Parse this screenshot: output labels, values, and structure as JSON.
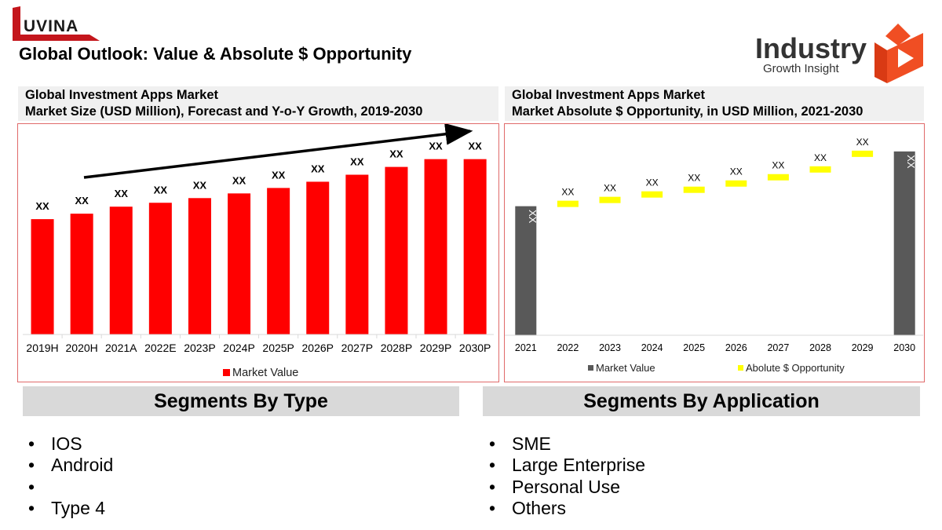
{
  "header": {
    "brand_left": "UVINA",
    "brand_left_initial": "L",
    "page_title": "Global Outlook: Value & Absolute $ Opportunity",
    "brand_right_main": "Industry",
    "brand_right_sub": "Growth Insight"
  },
  "colors": {
    "bar_red": "#ff0000",
    "bar_grey": "#595959",
    "opportunity_yellow": "#ffff00",
    "panel_border": "#e06a6a",
    "header_bg": "#f0f0f0",
    "segment_header_bg": "#d9d9d9",
    "logo_red": "#c4161c",
    "igi_orange": "#f04e23"
  },
  "left_panel": {
    "title_line1": "Global Investment Apps Market",
    "title_line2": "Market Size (USD Million), Forecast and Y-o-Y Growth, 2019-2030"
  },
  "right_panel": {
    "title_line1": "Global Investment Apps Market",
    "title_line2": "Market Absolute $ Opportunity, in USD Million, 2021-2030"
  },
  "chart_data": [
    {
      "type": "bar",
      "title": "Market Size (USD Million), Forecast and Y-o-Y Growth, 2019-2030",
      "xlabel": "",
      "ylabel": "",
      "categories": [
        "2019H",
        "2020H",
        "2021A",
        "2022E",
        "2023P",
        "2024P",
        "2025P",
        "2026P",
        "2027P",
        "2028P",
        "2029P",
        "2030P"
      ],
      "series": [
        {
          "name": "Market Value",
          "color": "#ff0000",
          "values": [
            148,
            155,
            164,
            169,
            175,
            181,
            188,
            196,
            205,
            215,
            225,
            225
          ],
          "data_labels": [
            "XX",
            "XX",
            "XX",
            "XX",
            "XX",
            "XX",
            "XX",
            "XX",
            "XX",
            "XX",
            "XX",
            "XX"
          ]
        }
      ],
      "ylim": [
        0,
        270
      ],
      "grid": false,
      "legend": "bottom",
      "annotations": [
        "growth-trend-arrow"
      ]
    },
    {
      "type": "bar",
      "subtype": "waterfall",
      "title": "Market Absolute $ Opportunity, in USD Million, 2021-2030",
      "xlabel": "",
      "ylabel": "",
      "categories": [
        "2021",
        "2022",
        "2023",
        "2024",
        "2025",
        "2026",
        "2027",
        "2028",
        "2029",
        "2030"
      ],
      "series": [
        {
          "name": "Market Value",
          "color": "#595959",
          "values": [
            165,
            null,
            null,
            null,
            null,
            null,
            null,
            null,
            null,
            235
          ],
          "data_labels": [
            "XX",
            "",
            "",
            "",
            "",
            "",
            "",
            "",
            "",
            "XX"
          ]
        },
        {
          "name": "Abolute $ Opportunity",
          "color": "#ffff00",
          "values": [
            null,
            168,
            173,
            180,
            186,
            194,
            202,
            212,
            232,
            null
          ],
          "data_labels": [
            "",
            "XX",
            "XX",
            "XX",
            "XX",
            "XX",
            "XX",
            "XX",
            "XX",
            ""
          ]
        }
      ],
      "ylim": [
        0,
        270
      ],
      "grid": false,
      "legend": "bottom"
    }
  ],
  "segments": {
    "by_type": {
      "title": "Segments By Type",
      "items": [
        "IOS",
        "Android",
        "",
        "Type 4"
      ]
    },
    "by_application": {
      "title": "Segments By Application",
      "items": [
        "SME",
        "Large Enterprise",
        "Personal Use",
        "Others"
      ]
    }
  }
}
